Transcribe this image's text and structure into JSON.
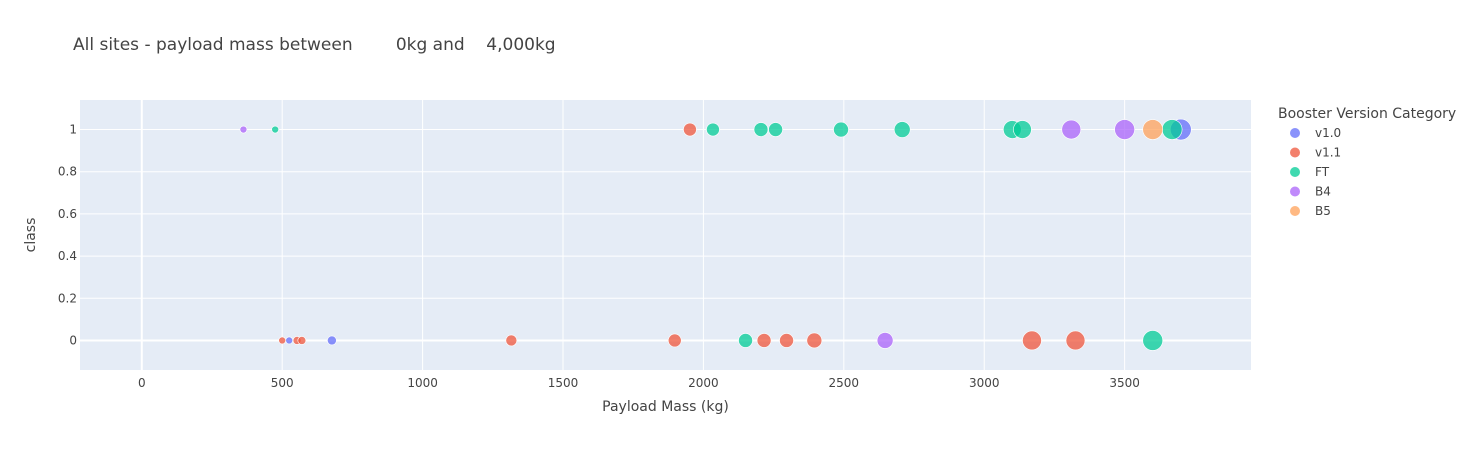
{
  "chart_data": {
    "type": "scatter",
    "title": "All sites - payload mass between        0kg and    4,000kg",
    "xlabel": "Payload Mass (kg)",
    "ylabel": "class",
    "xlim": [
      -220,
      3950
    ],
    "ylim": [
      -0.14,
      1.14
    ],
    "xticks": [
      0,
      500,
      1000,
      1500,
      2000,
      2500,
      3000,
      3500
    ],
    "yticks": [
      0,
      0.2,
      0.4,
      0.6,
      0.8,
      1
    ],
    "legend_title": "Booster Version Category",
    "legend_position": "right",
    "grid": true,
    "series": [
      {
        "name": "v1.0",
        "color": "#636efa",
        "points": [
          {
            "x": 525,
            "y": 0,
            "size": 6
          },
          {
            "x": 677,
            "y": 0,
            "size": 8
          },
          {
            "x": 3700,
            "y": 1,
            "size": 20
          }
        ]
      },
      {
        "name": "v1.1",
        "color": "#ef553b",
        "points": [
          {
            "x": 500,
            "y": 0,
            "size": 6
          },
          {
            "x": 553,
            "y": 0,
            "size": 7
          },
          {
            "x": 570,
            "y": 0,
            "size": 7
          },
          {
            "x": 1316,
            "y": 0,
            "size": 10
          },
          {
            "x": 1898,
            "y": 0,
            "size": 12
          },
          {
            "x": 1952,
            "y": 1,
            "size": 12
          },
          {
            "x": 2216,
            "y": 0,
            "size": 13
          },
          {
            "x": 2296,
            "y": 0,
            "size": 13
          },
          {
            "x": 2395,
            "y": 0,
            "size": 14
          },
          {
            "x": 3170,
            "y": 0,
            "size": 18
          },
          {
            "x": 3325,
            "y": 0,
            "size": 18
          }
        ]
      },
      {
        "name": "FT",
        "color": "#00cc96",
        "points": [
          {
            "x": 475,
            "y": 1,
            "size": 6
          },
          {
            "x": 2034,
            "y": 1,
            "size": 12
          },
          {
            "x": 2150,
            "y": 0,
            "size": 13
          },
          {
            "x": 2205,
            "y": 1,
            "size": 13
          },
          {
            "x": 2257,
            "y": 1,
            "size": 13
          },
          {
            "x": 2490,
            "y": 1,
            "size": 14
          },
          {
            "x": 2708,
            "y": 1,
            "size": 15
          },
          {
            "x": 3100,
            "y": 1,
            "size": 17
          },
          {
            "x": 3136,
            "y": 1,
            "size": 17
          },
          {
            "x": 3600,
            "y": 0,
            "size": 19
          },
          {
            "x": 3669,
            "y": 1,
            "size": 19
          }
        ]
      },
      {
        "name": "B4",
        "color": "#ab63fa",
        "points": [
          {
            "x": 362,
            "y": 1,
            "size": 6
          },
          {
            "x": 2647,
            "y": 0,
            "size": 15
          },
          {
            "x": 3310,
            "y": 1,
            "size": 18
          },
          {
            "x": 3500,
            "y": 1,
            "size": 19
          }
        ]
      },
      {
        "name": "B5",
        "color": "#ffa15a",
        "points": [
          {
            "x": 3600,
            "y": 1,
            "size": 19
          }
        ]
      }
    ]
  }
}
